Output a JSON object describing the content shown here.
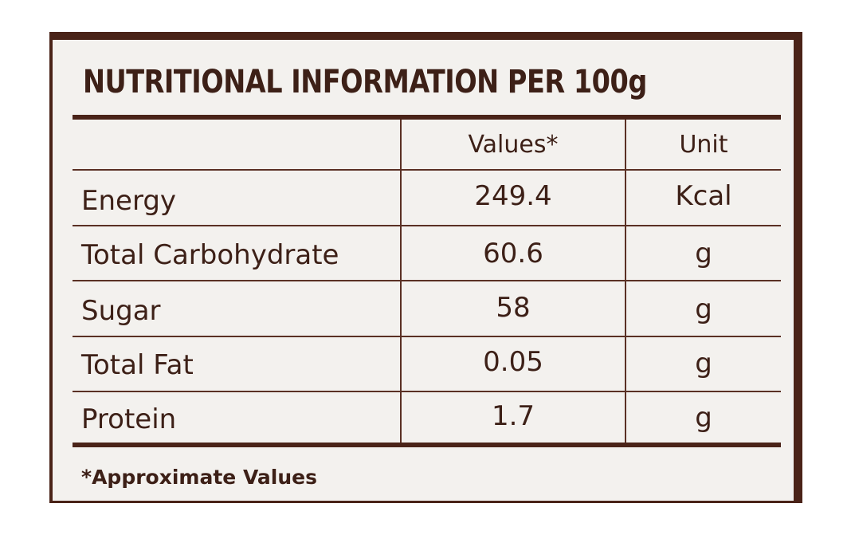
{
  "title": "NUTRITIONAL INFORMATION PER 100g",
  "header": {
    "nutrient": "",
    "values": "Values*",
    "unit": "Unit"
  },
  "rows": [
    {
      "nutrient": "Energy",
      "value": "249.4",
      "unit": "Kcal"
    },
    {
      "nutrient": "Total Carbohydrate",
      "value": "60.6",
      "unit": "g"
    },
    {
      "nutrient": "Sugar",
      "value": "58",
      "unit": "g"
    },
    {
      "nutrient": "Total Fat",
      "value": "0.05",
      "unit": "g"
    },
    {
      "nutrient": "Protein",
      "value": "1.7",
      "unit": "g"
    }
  ],
  "footnote": "*Approximate Values",
  "colors": {
    "frame": "#4a2318",
    "paper": "#f3f1ee",
    "ink": "#3d2017"
  }
}
